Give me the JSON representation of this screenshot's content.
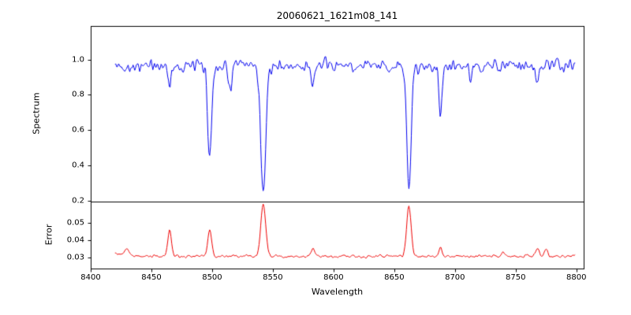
{
  "chart_data": {
    "type": "line",
    "title": "20060621_1621m08_141",
    "xlabel": "Wavelength",
    "grid": false,
    "legend": "none",
    "xlim": [
      8400,
      8806
    ],
    "x_range": [
      8420,
      8799
    ],
    "n_points": 560,
    "x_ticks": {
      "values": [
        8400,
        8450,
        8500,
        8550,
        8600,
        8650,
        8700,
        8750,
        8800
      ],
      "labels": [
        "8400",
        "8450",
        "8500",
        "8550",
        "8600",
        "8650",
        "8700",
        "8750",
        "8800"
      ]
    },
    "panels": [
      {
        "name": "spectrum",
        "ylabel": "Spectrum",
        "ylim": [
          0.195,
          1.19
        ],
        "y_ticks": {
          "values": [
            0.2,
            0.4,
            0.6,
            0.8,
            1.0
          ],
          "labels": [
            "0.2",
            "0.4",
            "0.6",
            "0.8",
            "1.0"
          ]
        },
        "color": "#0000ee",
        "baseline": 0.962,
        "noise_amplitude": 0.03,
        "seed": 42,
        "absorption_lines": [
          {
            "center": 8465.0,
            "depth": 0.1,
            "width": 1.2
          },
          {
            "center": 8498.0,
            "depth": 0.52,
            "width": 1.6
          },
          {
            "center": 8515.0,
            "depth": 0.14,
            "width": 1.2
          },
          {
            "center": 8542.1,
            "depth": 0.73,
            "width": 2.0
          },
          {
            "center": 8583.0,
            "depth": 0.11,
            "width": 1.2
          },
          {
            "center": 8662.1,
            "depth": 0.7,
            "width": 1.8
          },
          {
            "center": 8688.0,
            "depth": 0.29,
            "width": 1.3
          },
          {
            "center": 8713.0,
            "depth": 0.09,
            "width": 1.2
          },
          {
            "center": 8768.0,
            "depth": 0.09,
            "width": 1.2
          }
        ]
      },
      {
        "name": "error",
        "ylabel": "Error",
        "ylim": [
          0.0236,
          0.0623
        ],
        "y_ticks": {
          "values": [
            0.03,
            0.04,
            0.05
          ],
          "labels": [
            "0.03",
            "0.04",
            "0.05"
          ]
        },
        "color": "#ee0000",
        "baseline": 0.0307,
        "noise_amplitude": 0.0007,
        "seed": 99,
        "peaks": [
          {
            "center": 8421.0,
            "height": 0.0018,
            "width": 6.0
          },
          {
            "center": 8430.0,
            "height": 0.004,
            "width": 1.5
          },
          {
            "center": 8465.0,
            "height": 0.0145,
            "width": 1.5
          },
          {
            "center": 8498.0,
            "height": 0.0155,
            "width": 1.6
          },
          {
            "center": 8542.1,
            "height": 0.03,
            "width": 2.0
          },
          {
            "center": 8583.0,
            "height": 0.004,
            "width": 1.4
          },
          {
            "center": 8662.1,
            "height": 0.029,
            "width": 1.8
          },
          {
            "center": 8688.0,
            "height": 0.005,
            "width": 1.3
          },
          {
            "center": 8740.0,
            "height": 0.002,
            "width": 1.5
          },
          {
            "center": 8768.0,
            "height": 0.005,
            "width": 1.3
          },
          {
            "center": 8775.0,
            "height": 0.004,
            "width": 1.2
          }
        ]
      }
    ]
  }
}
